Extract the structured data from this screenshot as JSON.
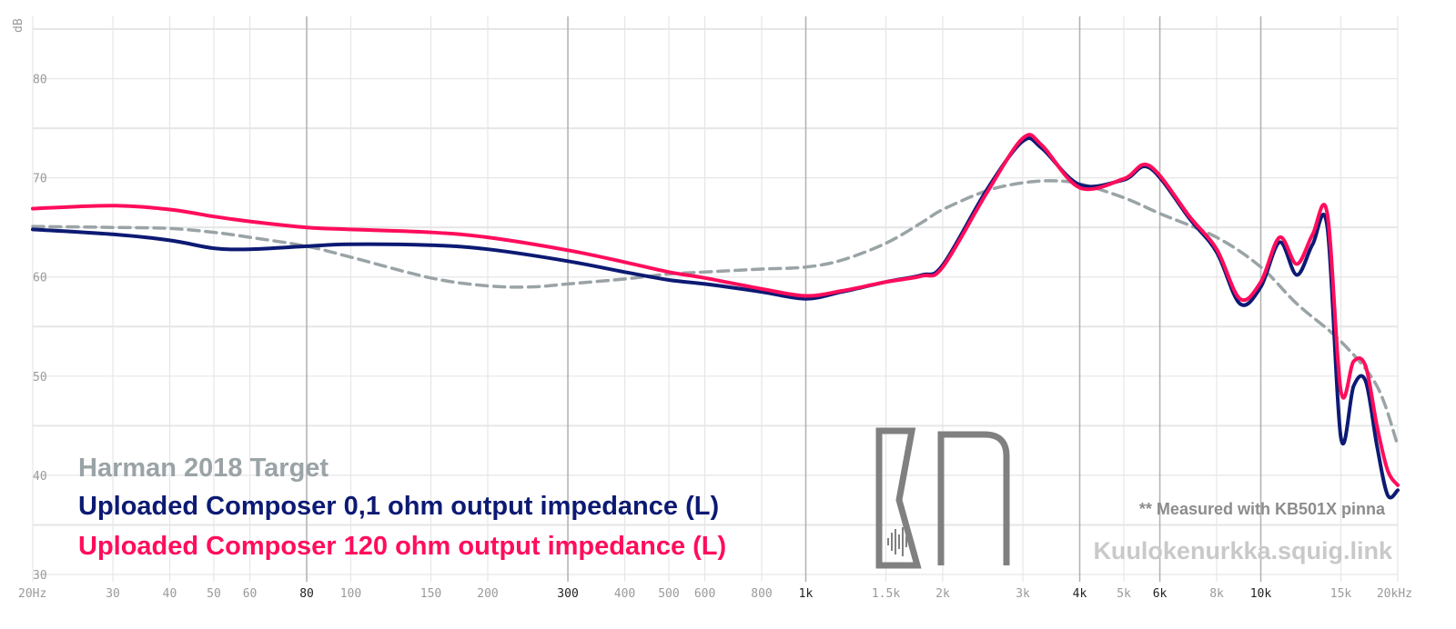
{
  "chart_data": {
    "type": "line",
    "xscale": "log",
    "xlim": [
      20,
      20000
    ],
    "ylim": [
      30,
      85
    ],
    "ylabel": "dB",
    "grid": true,
    "x_ticks": [
      {
        "v": 20,
        "label": "20Hz"
      },
      {
        "v": 30,
        "label": "30"
      },
      {
        "v": 40,
        "label": "40"
      },
      {
        "v": 50,
        "label": "50"
      },
      {
        "v": 60,
        "label": "60"
      },
      {
        "v": 80,
        "label": "80",
        "major": true
      },
      {
        "v": 100,
        "label": "100"
      },
      {
        "v": 150,
        "label": "150"
      },
      {
        "v": 200,
        "label": "200"
      },
      {
        "v": 300,
        "label": "300",
        "major": true
      },
      {
        "v": 400,
        "label": "400"
      },
      {
        "v": 500,
        "label": "500"
      },
      {
        "v": 600,
        "label": "600"
      },
      {
        "v": 800,
        "label": "800"
      },
      {
        "v": 1000,
        "label": "1k",
        "major": true
      },
      {
        "v": 1500,
        "label": "1.5k"
      },
      {
        "v": 2000,
        "label": "2k"
      },
      {
        "v": 3000,
        "label": "3k"
      },
      {
        "v": 4000,
        "label": "4k",
        "major": true
      },
      {
        "v": 5000,
        "label": "5k"
      },
      {
        "v": 6000,
        "label": "6k",
        "major": true
      },
      {
        "v": 8000,
        "label": "8k"
      },
      {
        "v": 10000,
        "label": "10k",
        "major": true
      },
      {
        "v": 15000,
        "label": "15k"
      },
      {
        "v": 20000,
        "label": "20kHz"
      }
    ],
    "y_ticks": [
      30,
      40,
      50,
      60,
      70,
      80
    ],
    "legend_placement": "bottom-left",
    "series": [
      {
        "name": "Harman 2018 Target",
        "color": "#9aa3a6",
        "dash": true,
        "x": [
          20,
          30,
          40,
          50,
          60,
          80,
          100,
          150,
          200,
          250,
          300,
          400,
          500,
          600,
          800,
          1000,
          1200,
          1500,
          1800,
          2000,
          2500,
          3000,
          3500,
          4000,
          5000,
          6000,
          8000,
          10000,
          12000,
          15000,
          18000,
          20000
        ],
        "y": [
          65.1,
          65.0,
          64.9,
          64.5,
          64.0,
          63.1,
          62.0,
          59.9,
          59.1,
          59.0,
          59.3,
          59.8,
          60.3,
          60.5,
          60.8,
          61.0,
          61.7,
          63.4,
          65.5,
          66.8,
          68.7,
          69.5,
          69.7,
          69.4,
          68.0,
          66.4,
          64.0,
          61.0,
          57.3,
          53.5,
          49.0,
          43.0
        ]
      },
      {
        "name": "Uploaded Composer 0,1 ohm output impedance (L)",
        "color": "#0c1a73",
        "x": [
          20,
          30,
          40,
          50,
          60,
          80,
          100,
          150,
          200,
          300,
          400,
          500,
          600,
          800,
          1000,
          1200,
          1500,
          1800,
          2000,
          2500,
          3000,
          3300,
          4000,
          5000,
          5700,
          7000,
          8000,
          9000,
          10000,
          11000,
          12000,
          13000,
          14000,
          15000,
          16000,
          17000,
          18000,
          19000,
          20000
        ],
        "y": [
          64.8,
          64.3,
          63.7,
          62.9,
          62.8,
          63.1,
          63.3,
          63.2,
          62.8,
          61.6,
          60.5,
          59.7,
          59.3,
          58.5,
          57.8,
          58.5,
          59.5,
          60.2,
          61.2,
          68.8,
          73.7,
          73.0,
          69.3,
          69.8,
          71.0,
          65.8,
          62.5,
          57.3,
          59.0,
          63.5,
          60.2,
          63.3,
          65.1,
          43.8,
          49.0,
          49.5,
          43.0,
          38.0,
          38.5
        ]
      },
      {
        "name": "Uploaded Composer 120 ohm output impedance (L)",
        "color": "#ff0d5c",
        "x": [
          20,
          30,
          40,
          50,
          60,
          80,
          100,
          150,
          200,
          300,
          400,
          500,
          600,
          800,
          1000,
          1200,
          1500,
          1800,
          2000,
          2500,
          3000,
          3300,
          4000,
          5000,
          5700,
          7000,
          8000,
          9000,
          10000,
          11000,
          12000,
          13000,
          14000,
          15000,
          16000,
          17000,
          18000,
          19000,
          20000
        ],
        "y": [
          66.9,
          67.2,
          66.8,
          66.1,
          65.6,
          65.0,
          64.8,
          64.5,
          64.0,
          62.7,
          61.5,
          60.5,
          59.9,
          58.8,
          58.1,
          58.6,
          59.5,
          60.1,
          61.0,
          68.5,
          74.0,
          73.3,
          69.0,
          69.9,
          71.2,
          66.0,
          62.8,
          57.8,
          59.5,
          64.0,
          61.3,
          64.3,
          66.4,
          48.5,
          51.5,
          51.0,
          45.0,
          40.5,
          39.0
        ]
      }
    ],
    "note": "** Measured with KB501X pinna",
    "watermark": "Kuulokenurkka.squig.link"
  },
  "colors": {
    "grid_minor": "#e6e6e6",
    "grid_major": "#b0b0b0",
    "logo": "#808080"
  },
  "icons": {
    "logo": "kn-logo-icon"
  }
}
